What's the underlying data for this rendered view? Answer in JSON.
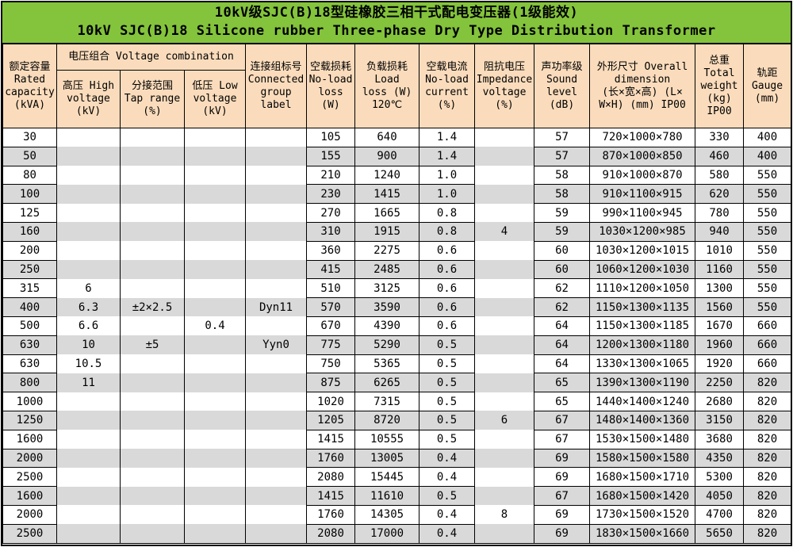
{
  "title": {
    "line1": "10kV级SJC(B)18型硅橡胶三相干式配电变压器(1级能效)",
    "line2": "10kV SJC(B)18 Silicone rubber Three-phase Dry Type Distribution Transformer"
  },
  "colors": {
    "title_background": "#84C33C",
    "header_background": "#FADCBC",
    "row_stripe": "#D9D9D9",
    "grid_border": "#000000"
  },
  "table": {
    "header": {
      "rated_capacity": "额定容量\nRated\ncapacity\n(kVA)",
      "voltage_combination": "电压组合 Voltage combination",
      "high_voltage": "高压 High\nvoltage\n(kV)",
      "tap_range": "分接范围\nTap range\n(%)",
      "low_voltage": "低压 Low\nvoltage\n(kV)",
      "connected_group": "连接组标号\nConnected\ngroup\nlabel",
      "no_load_loss": "空载损耗\nNo-load\nloss\n(W)",
      "load_loss": "负载损耗\nLoad\nloss (W)\n120℃",
      "no_load_current": "空载电流\nNo-load\ncurrent\n(%)",
      "impedance_voltage": "阻抗电压\nImpedance\nvoltage\n(%)",
      "sound_level": "声功率级\nSound\nlevel\n(dB)",
      "overall_dimension": "外形尺寸 Overall\ndimension\n(长×宽×高) (L×\nW×H) (mm) IP00",
      "total_weight": "总重\nTotal\nweight\n(kg)\nIP00",
      "gauge": "轨距\nGauge\n(mm)"
    },
    "column_keys": [
      "rated-capacity",
      "high-voltage",
      "tap-range",
      "low-voltage",
      "connected-group",
      "no-load-loss",
      "load-loss",
      "no-load-current",
      "impedance-voltage",
      "sound-level",
      "overall-dimension",
      "total-weight",
      "gauge"
    ],
    "rows": [
      [
        "30",
        "",
        "",
        "",
        "",
        "105",
        "640",
        "1.4",
        "",
        "57",
        "720×1000×780",
        "330",
        "400"
      ],
      [
        "50",
        "",
        "",
        "",
        "",
        "155",
        "900",
        "1.4",
        "",
        "57",
        "870×1000×850",
        "460",
        "400"
      ],
      [
        "80",
        "",
        "",
        "",
        "",
        "210",
        "1240",
        "1.0",
        "",
        "58",
        "910×1000×870",
        "580",
        "550"
      ],
      [
        "100",
        "",
        "",
        "",
        "",
        "230",
        "1415",
        "1.0",
        "",
        "58",
        "910×1100×915",
        "620",
        "550"
      ],
      [
        "125",
        "",
        "",
        "",
        "",
        "270",
        "1665",
        "0.8",
        "",
        "59",
        "990×1100×945",
        "780",
        "550"
      ],
      [
        "160",
        "",
        "",
        "",
        "",
        "310",
        "1915",
        "0.8",
        "4",
        "59",
        "1030×1200×985",
        "940",
        "550"
      ],
      [
        "200",
        "",
        "",
        "",
        "",
        "360",
        "2275",
        "0.6",
        "",
        "60",
        "1030×1200×1015",
        "1010",
        "550"
      ],
      [
        "250",
        "",
        "",
        "",
        "",
        "415",
        "2485",
        "0.6",
        "",
        "60",
        "1060×1200×1030",
        "1160",
        "550"
      ],
      [
        "315",
        "6",
        "",
        "",
        "",
        "510",
        "3125",
        "0.6",
        "",
        "62",
        "1110×1200×1050",
        "1300",
        "550"
      ],
      [
        "400",
        "6.3",
        "±2×2.5",
        "",
        "Dyn11",
        "570",
        "3590",
        "0.6",
        "",
        "62",
        "1150×1300×1135",
        "1560",
        "550"
      ],
      [
        "500",
        "6.6",
        "",
        "0.4",
        "",
        "670",
        "4390",
        "0.6",
        "",
        "64",
        "1150×1300×1185",
        "1670",
        "660"
      ],
      [
        "630",
        "10",
        "±5",
        "",
        "Yyn0",
        "775",
        "5290",
        "0.5",
        "",
        "64",
        "1200×1300×1180",
        "1960",
        "660"
      ],
      [
        "630",
        "10.5",
        "",
        "",
        "",
        "750",
        "5365",
        "0.5",
        "",
        "64",
        "1330×1300×1065",
        "1920",
        "660"
      ],
      [
        "800",
        "11",
        "",
        "",
        "",
        "875",
        "6265",
        "0.5",
        "",
        "65",
        "1390×1300×1190",
        "2250",
        "820"
      ],
      [
        "1000",
        "",
        "",
        "",
        "",
        "1020",
        "7315",
        "0.5",
        "",
        "65",
        "1440×1400×1240",
        "2680",
        "820"
      ],
      [
        "1250",
        "",
        "",
        "",
        "",
        "1205",
        "8720",
        "0.5",
        "6",
        "67",
        "1480×1400×1360",
        "3150",
        "820"
      ],
      [
        "1600",
        "",
        "",
        "",
        "",
        "1415",
        "10555",
        "0.5",
        "",
        "67",
        "1530×1500×1480",
        "3680",
        "820"
      ],
      [
        "2000",
        "",
        "",
        "",
        "",
        "1760",
        "13005",
        "0.4",
        "",
        "69",
        "1580×1500×1580",
        "4350",
        "820"
      ],
      [
        "2500",
        "",
        "",
        "",
        "",
        "2080",
        "15445",
        "0.4",
        "",
        "69",
        "1680×1500×1710",
        "5300",
        "820"
      ],
      [
        "1600",
        "",
        "",
        "",
        "",
        "1415",
        "11610",
        "0.5",
        "",
        "67",
        "1680×1500×1420",
        "4050",
        "820"
      ],
      [
        "2000",
        "",
        "",
        "",
        "",
        "1760",
        "14305",
        "0.4",
        "8",
        "69",
        "1730×1500×1520",
        "4700",
        "820"
      ],
      [
        "2500",
        "",
        "",
        "",
        "",
        "2080",
        "17000",
        "0.4",
        "",
        "69",
        "1830×1500×1660",
        "5650",
        "820"
      ]
    ]
  }
}
